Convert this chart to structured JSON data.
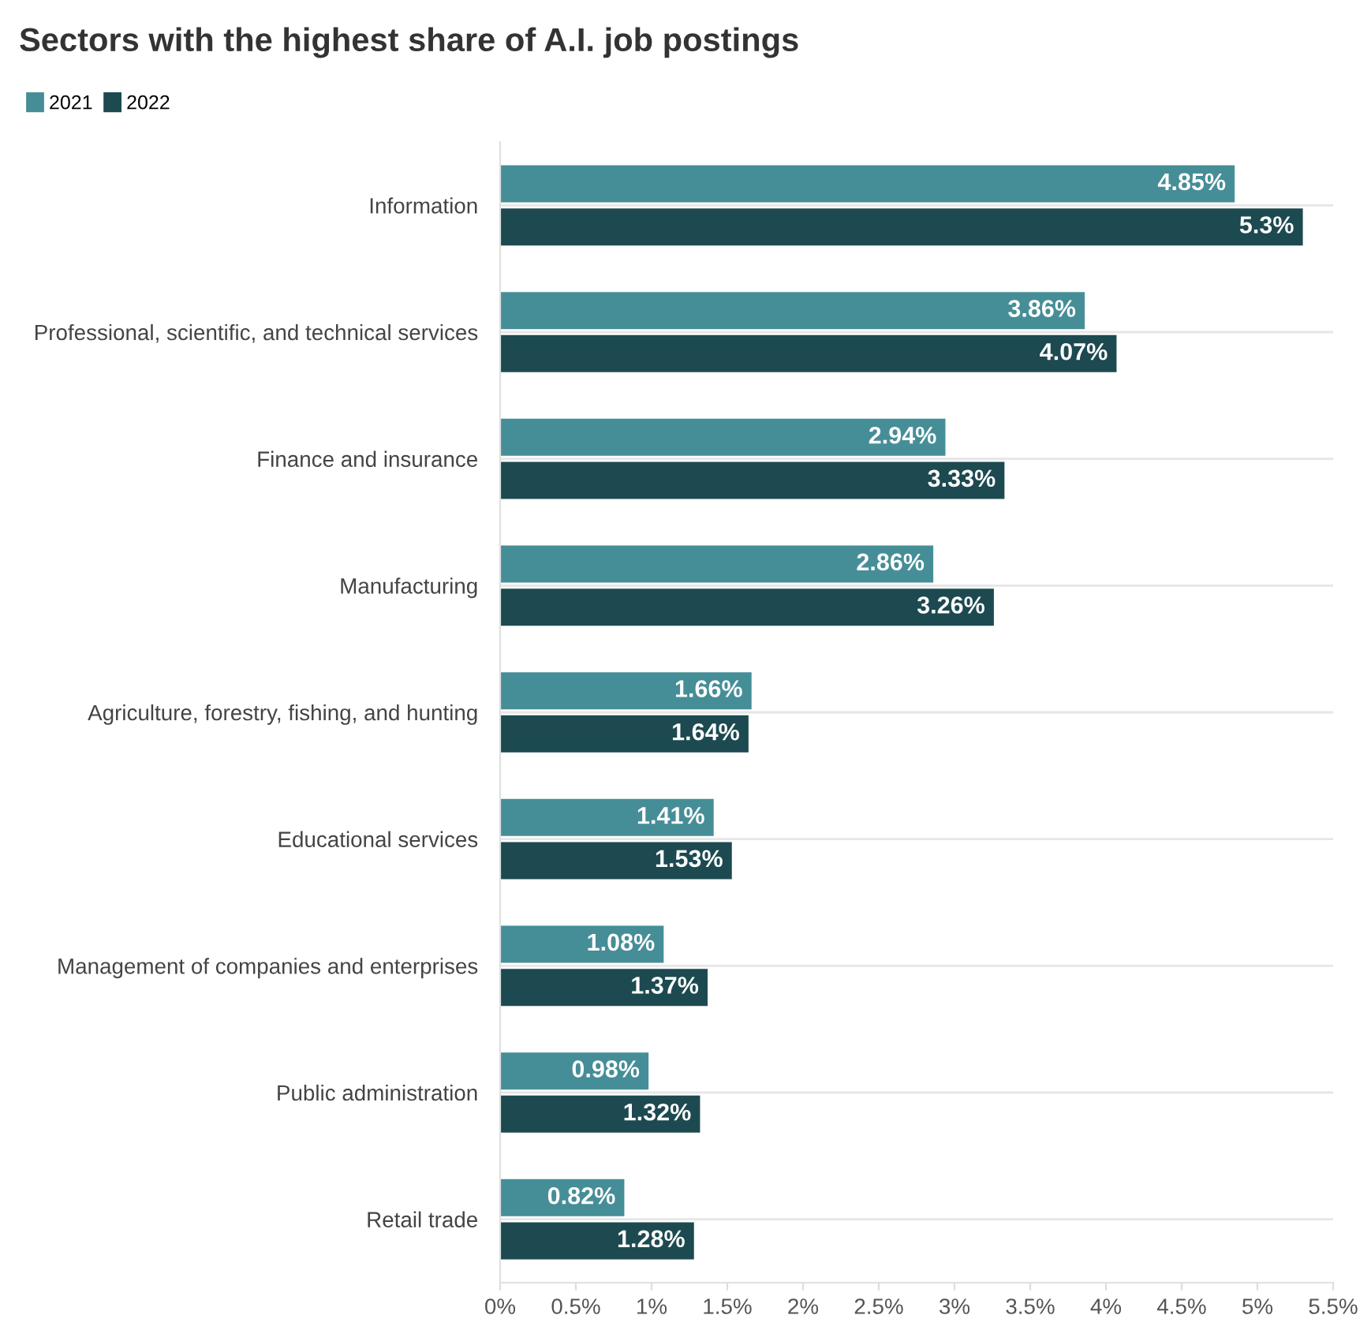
{
  "chart_data": {
    "type": "bar",
    "orientation": "horizontal",
    "title": "Sectors with the highest share of A.I. job postings",
    "categories": [
      "Information",
      "Professional, scientific, and technical services",
      "Finance and insurance",
      "Manufacturing",
      "Agriculture, forestry, fishing, and hunting",
      "Educational services",
      "Management of companies and enterprises",
      "Public administration",
      "Retail trade"
    ],
    "series": [
      {
        "name": "2021",
        "color": "#468e97",
        "values": [
          4.85,
          3.86,
          2.94,
          2.86,
          1.66,
          1.41,
          1.08,
          0.98,
          0.82
        ],
        "value_labels": [
          "4.85%",
          "3.86%",
          "2.94%",
          "2.86%",
          "1.66%",
          "1.41%",
          "1.08%",
          "0.98%",
          "0.82%"
        ]
      },
      {
        "name": "2022",
        "color": "#1c4a50",
        "values": [
          5.3,
          4.07,
          3.33,
          3.26,
          1.64,
          1.53,
          1.37,
          1.32,
          1.28
        ],
        "value_labels": [
          "5.3%",
          "4.07%",
          "3.33%",
          "3.26%",
          "1.64%",
          "1.53%",
          "1.37%",
          "1.32%",
          "1.28%"
        ]
      }
    ],
    "xlim": [
      0,
      5.5
    ],
    "xticks": [
      {
        "value": 0,
        "label": "0%"
      },
      {
        "value": 0.5,
        "label": "0.5%"
      },
      {
        "value": 1,
        "label": "1%"
      },
      {
        "value": 1.5,
        "label": "1.5%"
      },
      {
        "value": 2,
        "label": "2%"
      },
      {
        "value": 2.5,
        "label": "2.5%"
      },
      {
        "value": 3,
        "label": "3%"
      },
      {
        "value": 3.5,
        "label": "3.5%"
      },
      {
        "value": 4,
        "label": "4%"
      },
      {
        "value": 4.5,
        "label": "4.5%"
      },
      {
        "value": 5,
        "label": "5%"
      },
      {
        "value": 5.5,
        "label": "5.5%"
      }
    ],
    "grid": "y",
    "legend": "top left"
  }
}
